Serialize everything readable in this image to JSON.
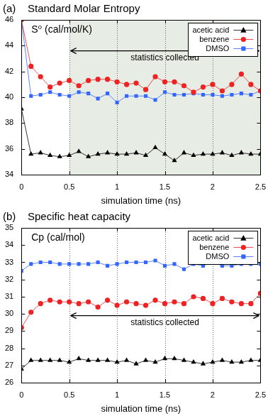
{
  "chart_data": [
    {
      "type": "line",
      "title": "(a)    Standard Molar Entropy",
      "xlabel": "simulation time (ns)",
      "ylabel": "S⁰ (cal/mol/K)",
      "x": [
        0,
        0.1,
        0.2,
        0.3,
        0.4,
        0.5,
        0.6,
        0.7,
        0.8,
        0.9,
        1.0,
        1.1,
        1.2,
        1.3,
        1.4,
        1.5,
        1.6,
        1.7,
        1.8,
        1.9,
        2.0,
        2.1,
        2.2,
        2.3,
        2.4,
        2.5
      ],
      "series": [
        {
          "name": "acetic acid",
          "color": "#000000",
          "marker": "triangle",
          "values": [
            39.1,
            35.6,
            35.7,
            35.5,
            35.4,
            35.5,
            35.8,
            35.4,
            35.6,
            35.7,
            35.6,
            35.6,
            35.7,
            35.5,
            36.1,
            35.6,
            35.1,
            35.7,
            35.5,
            35.6,
            35.6,
            35.7,
            35.5,
            35.7,
            35.6,
            35.6
          ]
        },
        {
          "name": "benzene",
          "color": "#ee2222",
          "marker": "circle",
          "values": [
            46.0,
            42.4,
            41.6,
            40.8,
            41.1,
            41.3,
            40.9,
            41.3,
            41.4,
            41.4,
            41.2,
            41.0,
            41.1,
            40.6,
            41.6,
            41.2,
            41.2,
            40.9,
            40.4,
            40.8,
            41.0,
            40.5,
            41.0,
            41.8,
            41.0,
            40.5
          ]
        },
        {
          "name": "DMSO",
          "color": "#3366ff",
          "marker": "square",
          "values": [
            46.0,
            40.1,
            40.2,
            40.4,
            40.2,
            40.1,
            40.4,
            40.3,
            39.9,
            40.3,
            39.6,
            40.1,
            40.1,
            40.1,
            39.8,
            40.4,
            40.2,
            40.2,
            40.3,
            40.2,
            40.2,
            40.1,
            40.2,
            40.3,
            40.2,
            40.5
          ]
        }
      ],
      "xlim": [
        0,
        2.5
      ],
      "xticks": [
        0,
        0.5,
        1,
        1.5,
        2,
        2.5
      ],
      "ylim": [
        34,
        46
      ],
      "yticks": [
        34,
        36,
        38,
        40,
        42,
        44,
        46
      ],
      "grid": "x",
      "legend": "upper right",
      "shaded_region": [
        0.5,
        2.5
      ],
      "annotations": [
        {
          "text": "statistics collected",
          "x": [
            0.5,
            2.5
          ],
          "y": 43.6
        }
      ]
    },
    {
      "type": "line",
      "title": "(b)    Specific heat capacity",
      "xlabel": "simulation time (ns)",
      "ylabel": "Cp (cal/mol)",
      "x": [
        0,
        0.1,
        0.2,
        0.3,
        0.4,
        0.5,
        0.6,
        0.7,
        0.8,
        0.9,
        1.0,
        1.1,
        1.2,
        1.3,
        1.4,
        1.5,
        1.6,
        1.7,
        1.8,
        1.9,
        2.0,
        2.1,
        2.2,
        2.3,
        2.4,
        2.5
      ],
      "series": [
        {
          "name": "acetic acid",
          "color": "#000000",
          "marker": "triangle",
          "values": [
            26.8,
            27.3,
            27.3,
            27.3,
            27.3,
            27.2,
            27.4,
            27.3,
            27.3,
            27.3,
            27.2,
            27.3,
            27.1,
            27.3,
            27.2,
            27.4,
            27.4,
            27.3,
            27.2,
            27.1,
            27.2,
            27.3,
            27.2,
            27.2,
            27.3,
            27.3
          ]
        },
        {
          "name": "benzene",
          "color": "#ee2222",
          "marker": "circle",
          "values": [
            29.2,
            30.1,
            30.6,
            30.8,
            30.7,
            30.7,
            30.6,
            30.7,
            30.4,
            30.8,
            30.5,
            30.7,
            30.6,
            30.5,
            30.8,
            30.6,
            30.7,
            30.6,
            31.0,
            30.9,
            30.6,
            30.9,
            30.7,
            30.6,
            30.6,
            31.2
          ]
        },
        {
          "name": "DMSO",
          "color": "#3366ff",
          "marker": "square",
          "values": [
            32.5,
            32.9,
            33.0,
            33.0,
            32.9,
            32.9,
            32.9,
            32.9,
            33.0,
            32.8,
            32.9,
            33.0,
            33.0,
            33.0,
            33.1,
            32.8,
            32.9,
            32.6,
            32.9,
            32.8,
            33.0,
            32.8,
            32.8,
            32.9,
            32.9,
            32.9
          ]
        }
      ],
      "xlim": [
        0,
        2.5
      ],
      "xticks": [
        0,
        0.5,
        1,
        1.5,
        2,
        2.5
      ],
      "ylim": [
        26,
        35
      ],
      "yticks": [
        26,
        27,
        28,
        29,
        30,
        31,
        32,
        33,
        34,
        35
      ],
      "grid": "x",
      "legend": "upper right",
      "annotations": [
        {
          "text": "statistics collected",
          "x": [
            0.5,
            2.5
          ],
          "y": 29.9
        }
      ]
    }
  ]
}
